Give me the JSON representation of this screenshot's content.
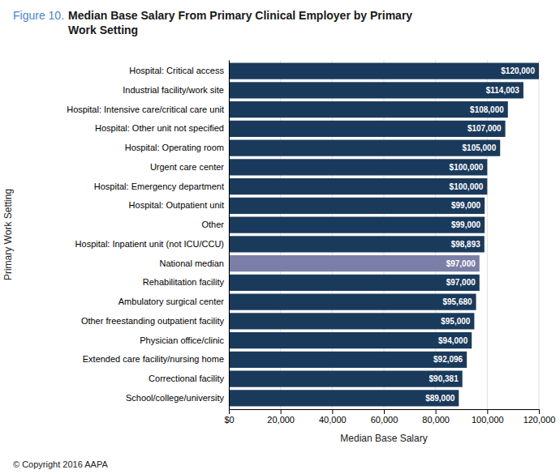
{
  "chart_data": {
    "type": "bar",
    "orientation": "horizontal",
    "title": "Figure 10.",
    "subtitle": "Median Base Salary From Primary Clinical Employer by Primary\nWork Setting",
    "x_label": "Median Base Salary",
    "y_label": "Primary Work Setting",
    "annotations": [
      "© Copyright 2016 AAPA"
    ],
    "categories": [
      "Hospital: Critical access",
      "Industrial facility/work site",
      "Hospital: Intensive care/critical care unit",
      "Hospital: Other unit not specified",
      "Hospital: Operating room",
      "Urgent care center",
      "Hospital: Emergency department",
      "Hospital: Outpatient unit",
      "Other",
      "Hospital: Inpatient unit (not ICU/CCU)",
      "National median",
      "Rehabilitation facility",
      "Ambulatory surgical center",
      "Other freestanding outpatient facility",
      "Physician office/clinic",
      "Extended care facility/nursing home",
      "Correctional facility",
      "School/college/university"
    ],
    "values": [
      120000,
      114003,
      108000,
      107000,
      105000,
      100000,
      100000,
      99000,
      99000,
      98893,
      97000,
      97000,
      95680,
      95000,
      94000,
      92096,
      90381,
      89000
    ],
    "value_labels": [
      "$120,000",
      "$114,003",
      "$108,000",
      "$107,000",
      "$105,000",
      "$100,000",
      "$100,000",
      "$99,000",
      "$99,000",
      "$98,893",
      "$97,000",
      "$97,000",
      "$95,680",
      "$95,000",
      "$94,000",
      "$92,096",
      "$90,381",
      "$89,000"
    ],
    "data_labels": true,
    "colors": [
      "#1a3a5c",
      "#1a3a5c",
      "#1a3a5c",
      "#1a3a5c",
      "#1a3a5c",
      "#1a3a5c",
      "#1a3a5c",
      "#1a3a5c",
      "#1a3a5c",
      "#1a3a5c",
      "#7b7fa8",
      "#1a3a5c",
      "#1a3a5c",
      "#1a3a5c",
      "#1a3a5c",
      "#1a3a5c",
      "#1a3a5c",
      "#1a3a5c"
    ],
    "xlim": [
      0,
      120000
    ],
    "xticks": [
      {
        "value": 0,
        "label": "$0"
      },
      {
        "value": 20000,
        "label": "20,000"
      },
      {
        "value": 40000,
        "label": "40,000"
      },
      {
        "value": 60000,
        "label": "60,000"
      },
      {
        "value": 80000,
        "label": "80,000"
      },
      {
        "value": 100000,
        "label": "100,000"
      },
      {
        "value": 120000,
        "label": "120,000"
      }
    ],
    "grid": true
  }
}
